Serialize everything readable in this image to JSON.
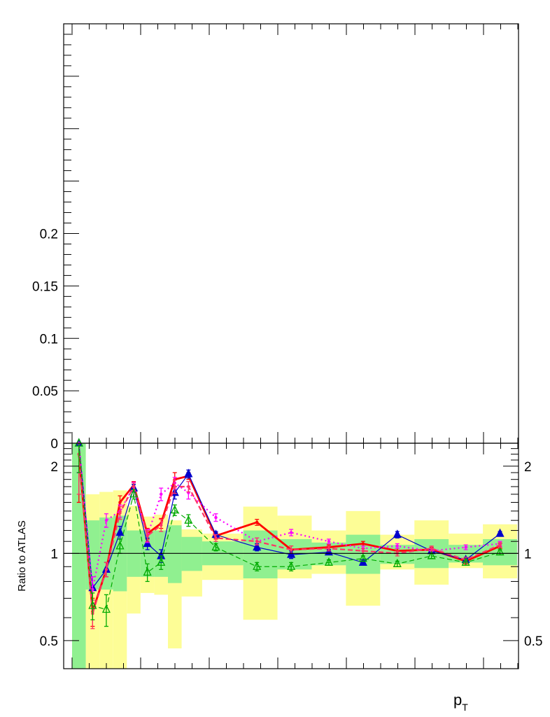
{
  "chart_data": [
    {
      "panel": "top",
      "type": "line",
      "title": "",
      "xlabel": "",
      "ylabel": "",
      "ylim": [
        0,
        0.4
      ],
      "y_tick_labels": [
        {
          "value": 0,
          "label": "0"
        },
        {
          "value": 0.05,
          "label": "0.05"
        },
        {
          "value": 0.1,
          "label": "0.1"
        },
        {
          "value": 0.15,
          "label": "0.15"
        },
        {
          "value": 0.2,
          "label": "0.2"
        }
      ],
      "series": []
    },
    {
      "panel": "bottom",
      "type": "line",
      "xlabel": "p",
      "xlabel_sub": "T",
      "ylabel": "Ratio to ATLAS",
      "y_log": true,
      "ylim": [
        0.4,
        2.4
      ],
      "reference_line": 1,
      "y_tick_labels": [
        {
          "value": 0.5,
          "label": "0.5"
        },
        {
          "value": 1,
          "label": "1"
        },
        {
          "value": 2,
          "label": "2"
        }
      ],
      "bands": {
        "inner_color": "#90f090",
        "outer_color": "#fdfd96",
        "bins": [
          {
            "x0": 0,
            "x1": 1,
            "inner": [
              0.4,
              2.4
            ],
            "outer": [
              0.4,
              2.4
            ]
          },
          {
            "x0": 1,
            "x1": 2,
            "inner": [
              0.75,
              1.3
            ],
            "outer": [
              0.38,
              1.6
            ]
          },
          {
            "x0": 2,
            "x1": 3,
            "inner": [
              0.75,
              1.33
            ],
            "outer": [
              0.37,
              1.63
            ]
          },
          {
            "x0": 3,
            "x1": 4,
            "inner": [
              0.74,
              1.35
            ],
            "outer": [
              0.34,
              1.65
            ]
          },
          {
            "x0": 4,
            "x1": 5,
            "inner": [
              0.83,
              1.2
            ],
            "outer": [
              0.62,
              1.46
            ]
          },
          {
            "x0": 5,
            "x1": 6,
            "inner": [
              0.83,
              1.2
            ],
            "outer": [
              0.73,
              1.34
            ]
          },
          {
            "x0": 6,
            "x1": 7,
            "inner": [
              0.83,
              1.2
            ],
            "outer": [
              0.72,
              1.36
            ]
          },
          {
            "x0": 7,
            "x1": 8,
            "inner": [
              0.79,
              1.25
            ],
            "outer": [
              0.47,
              1.3
            ]
          },
          {
            "x0": 8,
            "x1": 9.5,
            "inner": [
              0.87,
              1.14
            ],
            "outer": [
              0.71,
              1.21
            ]
          },
          {
            "x0": 9.5,
            "x1": 12.5,
            "inner": [
              0.91,
              1.1
            ],
            "outer": [
              0.81,
              1.17
            ]
          },
          {
            "x0": 12.5,
            "x1": 15,
            "inner": [
              0.82,
              1.2
            ],
            "outer": [
              0.59,
              1.45
            ]
          },
          {
            "x0": 15,
            "x1": 17.5,
            "inner": [
              0.88,
              1.12
            ],
            "outer": [
              0.82,
              1.35
            ]
          },
          {
            "x0": 17.5,
            "x1": 20,
            "inner": [
              0.91,
              1.09
            ],
            "outer": [
              0.85,
              1.2
            ]
          },
          {
            "x0": 20,
            "x1": 22.5,
            "inner": [
              0.85,
              1.16
            ],
            "outer": [
              0.66,
              1.4
            ]
          },
          {
            "x0": 22.5,
            "x1": 25,
            "inner": [
              0.92,
              1.07
            ],
            "outer": [
              0.88,
              1.16
            ]
          },
          {
            "x0": 25,
            "x1": 27.5,
            "inner": [
              0.89,
              1.12
            ],
            "outer": [
              0.78,
              1.3
            ]
          },
          {
            "x0": 27.5,
            "x1": 30,
            "inner": [
              0.93,
              1.07
            ],
            "outer": [
              0.89,
              1.17
            ]
          },
          {
            "x0": 30,
            "x1": 32.5,
            "inner": [
              0.91,
              1.12
            ],
            "outer": [
              0.82,
              1.26
            ]
          }
        ]
      },
      "series": [
        {
          "color": "#ff0000",
          "style": "solid",
          "width": 2.8,
          "marker": "dot",
          "x": [
            0.5,
            1.5,
            2.5,
            3.5,
            4.5,
            5.5,
            6.5,
            7.5,
            8.5,
            10.5,
            13.5,
            16,
            18.75,
            21.25,
            23.75,
            26.25,
            28.75,
            31.25
          ],
          "y": [
            2.2,
            0.63,
            0.88,
            1.5,
            1.72,
            1.17,
            1.27,
            1.8,
            1.85,
            1.15,
            1.28,
            1.03,
            1.05,
            1.08,
            1.02,
            1.03,
            0.94,
            1.06
          ],
          "err": [
            0.7,
            0.07,
            0.05,
            0.08,
            0.05,
            0.05,
            0.05,
            0.1,
            0.05,
            0.03,
            0.03,
            0.03,
            0.02,
            0.02,
            0.02,
            0.02,
            0.02,
            0.02
          ]
        },
        {
          "color": "#0000cc",
          "style": "solid",
          "width": 1.2,
          "marker": "filled-triangle",
          "x": [
            0.5,
            1.5,
            2.5,
            3.5,
            4.5,
            5.5,
            6.5,
            7.5,
            8.5,
            10.5,
            13.5,
            16,
            18.75,
            21.25,
            23.75,
            26.25,
            28.75,
            31.25
          ],
          "y": [
            2.4,
            0.76,
            0.88,
            1.18,
            1.68,
            1.08,
            0.98,
            1.62,
            1.88,
            1.16,
            1.05,
            0.99,
            1.01,
            0.93,
            1.16,
            1.02,
            0.95,
            1.17
          ],
          "err": [
            0.5,
            0.07,
            0.05,
            0.06,
            0.05,
            0.05,
            0.05,
            0.08,
            0.06,
            0.03,
            0.03,
            0.03,
            0.02,
            0.02,
            0.03,
            0.02,
            0.02,
            0.02
          ]
        },
        {
          "color": "#ff00ff",
          "style": "dotted",
          "width": 2.2,
          "marker": "dot",
          "x": [
            0.5,
            1.5,
            2.5,
            3.5,
            4.5,
            5.5,
            6.5,
            7.5,
            8.5,
            10.5,
            13.5,
            16,
            18.75,
            21.25,
            23.75,
            26.25,
            28.75,
            31.25
          ],
          "y": [
            2.4,
            0.75,
            1.3,
            1.4,
            1.7,
            1.15,
            1.6,
            1.75,
            1.62,
            1.33,
            1.1,
            1.18,
            1.1,
            1.04,
            1.06,
            1.02,
            1.05,
            1.08
          ],
          "err": [
            0.5,
            0.08,
            0.07,
            0.07,
            0.06,
            0.06,
            0.08,
            0.08,
            0.08,
            0.04,
            0.03,
            0.03,
            0.02,
            0.02,
            0.02,
            0.02,
            0.02,
            0.02
          ]
        },
        {
          "color": "#ff3366",
          "style": "dashed",
          "width": 2.2,
          "marker": "dot",
          "x": [
            0.5,
            1.5,
            2.5,
            3.5,
            4.5,
            5.5,
            6.5,
            7.5,
            8.5,
            10.5,
            13.5,
            16,
            18.75,
            21.25,
            23.75,
            26.25,
            28.75,
            31.25
          ],
          "y": [
            2.2,
            0.62,
            0.88,
            1.38,
            1.7,
            1.15,
            1.25,
            1.7,
            1.7,
            1.13,
            1.1,
            1.03,
            1.04,
            1.02,
            1.0,
            1.04,
            0.95,
            1.07
          ],
          "err": [
            0.6,
            0.07,
            0.05,
            0.07,
            0.05,
            0.05,
            0.06,
            0.09,
            0.07,
            0.03,
            0.03,
            0.03,
            0.02,
            0.02,
            0.02,
            0.02,
            0.02,
            0.02
          ]
        },
        {
          "color": "#00aa00",
          "style": "dashed",
          "width": 1.2,
          "marker": "open-triangle",
          "x": [
            0.5,
            1.5,
            2.5,
            3.5,
            4.5,
            5.5,
            6.5,
            7.5,
            8.5,
            10.5,
            13.5,
            16,
            18.75,
            21.25,
            23.75,
            26.25,
            28.75,
            31.25
          ],
          "y": [
            2.4,
            0.66,
            0.64,
            1.06,
            1.6,
            0.86,
            0.93,
            1.41,
            1.3,
            1.05,
            0.9,
            0.9,
            0.93,
            0.96,
            0.92,
            0.98,
            0.93,
            1.01
          ],
          "err": [
            0.5,
            0.07,
            0.08,
            0.06,
            0.06,
            0.06,
            0.05,
            0.06,
            0.06,
            0.03,
            0.03,
            0.03,
            0.02,
            0.02,
            0.02,
            0.02,
            0.02,
            0.02
          ]
        }
      ]
    }
  ]
}
